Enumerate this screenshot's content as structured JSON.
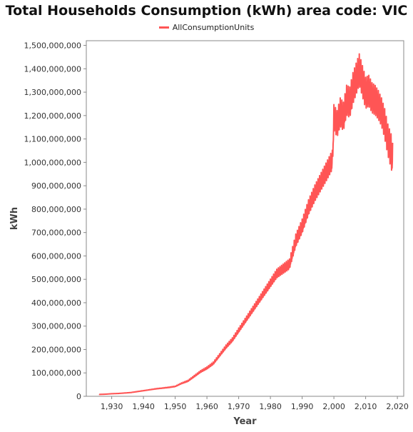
{
  "chart_data": {
    "type": "line",
    "title": "Total Households Consumption (kWh) area code: VIC",
    "xlabel": "Year",
    "ylabel": "kWh",
    "xlim": [
      1922,
      2022
    ],
    "ylim": [
      0,
      1520000000
    ],
    "x_ticks": [
      1930,
      1940,
      1950,
      1960,
      1970,
      1980,
      1990,
      2000,
      2010,
      2020
    ],
    "x_tick_labels": [
      "1,930",
      "1,940",
      "1,950",
      "1,960",
      "1,970",
      "1,980",
      "1,990",
      "2,000",
      "2,010",
      "2,020"
    ],
    "y_ticks": [
      0,
      100000000,
      200000000,
      300000000,
      400000000,
      500000000,
      600000000,
      700000000,
      800000000,
      900000000,
      1000000000,
      1100000000,
      1200000000,
      1300000000,
      1400000000,
      1500000000
    ],
    "y_tick_labels": [
      "0",
      "100,000,000",
      "200,000,000",
      "300,000,000",
      "400,000,000",
      "500,000,000",
      "600,000,000",
      "700,000,000",
      "800,000,000",
      "900,000,000",
      "1,000,000,000",
      "1,100,000,000",
      "1,200,000,000",
      "1,300,000,000",
      "1,400,000,000",
      "1,500,000,000"
    ],
    "grid": false,
    "legend_position": "top-center",
    "series": [
      {
        "name": "AllConsumptionUnits",
        "color": "#ff5555",
        "x": [
          1926,
          1928,
          1930,
          1932,
          1934,
          1936,
          1938,
          1940,
          1942,
          1944,
          1946,
          1948,
          1950,
          1952,
          1954,
          1956,
          1958,
          1960,
          1962,
          1964,
          1966,
          1968,
          1970,
          1972,
          1974,
          1976,
          1978,
          1980,
          1982,
          1984,
          1986,
          1987,
          1988,
          1990,
          1992,
          1994,
          1996,
          1998,
          1999.5,
          2000,
          2001,
          2002,
          2003,
          2004,
          2005,
          2006,
          2007,
          2008,
          2009,
          2010,
          2011,
          2012,
          2013,
          2014,
          2015,
          2016,
          2017,
          2018,
          2018.5
        ],
        "y": [
          8000000,
          9000000,
          11000000,
          12000000,
          14000000,
          16000000,
          20000000,
          24000000,
          28000000,
          32000000,
          35000000,
          38000000,
          42000000,
          55000000,
          65000000,
          85000000,
          105000000,
          120000000,
          140000000,
          175000000,
          210000000,
          240000000,
          280000000,
          320000000,
          360000000,
          400000000,
          440000000,
          480000000,
          520000000,
          540000000,
          560000000,
          610000000,
          660000000,
          720000000,
          800000000,
          860000000,
          910000000,
          960000000,
          1000000000,
          1180000000,
          1150000000,
          1200000000,
          1180000000,
          1250000000,
          1240000000,
          1300000000,
          1340000000,
          1380000000,
          1330000000,
          1280000000,
          1290000000,
          1260000000,
          1250000000,
          1230000000,
          1200000000,
          1150000000,
          1080000000,
          1030000000,
          1000000000
        ],
        "amplitude": [
          500000,
          500000,
          500000,
          500000,
          500000,
          500000,
          1000000,
          1000000,
          1000000,
          1500000,
          1500000,
          2000000,
          2000000,
          3000000,
          4000000,
          5000000,
          6000000,
          7000000,
          8000000,
          9000000,
          11000000,
          12000000,
          14000000,
          15000000,
          17000000,
          19000000,
          22000000,
          25000000,
          28000000,
          30000000,
          32000000,
          36000000,
          40000000,
          45000000,
          48000000,
          52000000,
          56000000,
          60000000,
          62000000,
          80000000,
          85000000,
          90000000,
          92000000,
          95000000,
          98000000,
          100000000,
          100000000,
          100000000,
          100000000,
          100000000,
          98000000,
          96000000,
          94000000,
          92000000,
          90000000,
          95000000,
          100000000,
          110000000,
          100000000
        ]
      }
    ]
  }
}
